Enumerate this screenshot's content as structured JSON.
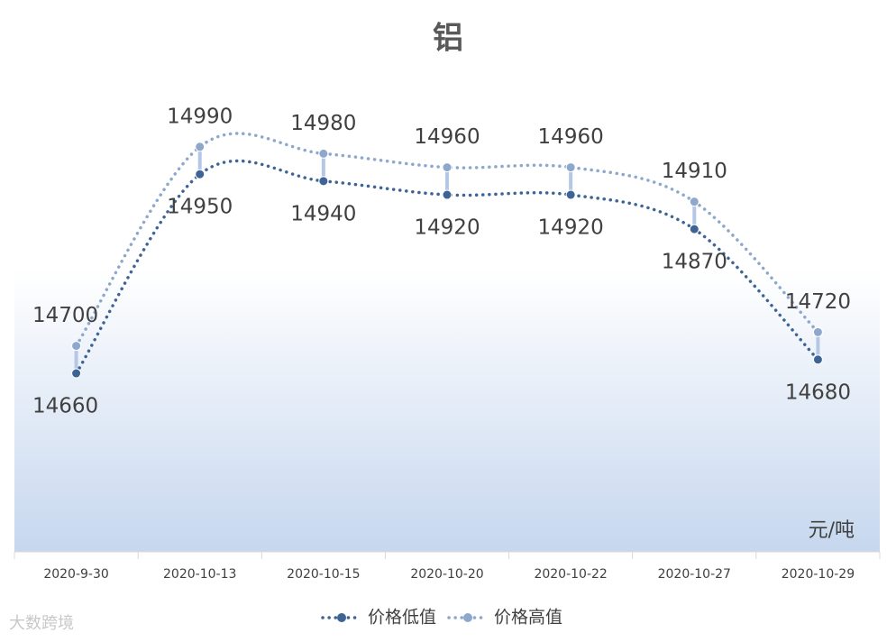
{
  "chart_data": {
    "type": "line",
    "title": "铝",
    "unit_label": "元/吨",
    "categories": [
      "2020-9-30",
      "2020-10-13",
      "2020-10-15",
      "2020-10-20",
      "2020-10-22",
      "2020-10-27",
      "2020-10-29"
    ],
    "series": [
      {
        "name": "价格低值",
        "color": "#3e6496",
        "values": [
          14660,
          14950,
          14940,
          14920,
          14920,
          14870,
          14680
        ]
      },
      {
        "name": "价格高值",
        "color": "#8ea7cc",
        "values": [
          14700,
          14990,
          14980,
          14960,
          14960,
          14910,
          14720
        ]
      }
    ],
    "ylim": [
      14400,
      15100
    ],
    "high_low_lines": true,
    "smooth": true,
    "legend": "bottom"
  },
  "watermark": "大数跨境"
}
